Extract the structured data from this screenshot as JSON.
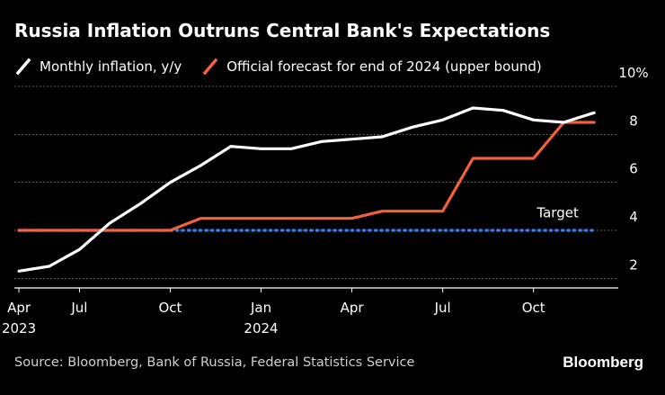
{
  "title": "Russia Inflation Outruns Central Bank's Expectations",
  "legend": [
    {
      "label": "Monthly inflation, y/y",
      "color": "#ffffff"
    },
    {
      "label": "Official forecast for end of 2024 (upper bound)",
      "color": "#f2613b"
    }
  ],
  "source": "Source: Bloomberg, Bank of Russia, Federal Statistics Service",
  "brand": "Bloomberg",
  "chart_data": {
    "type": "line",
    "title": "Russia Inflation Outruns Central Bank's Expectations",
    "x": [
      "2023-04",
      "2023-05",
      "2023-06",
      "2023-07",
      "2023-08",
      "2023-09",
      "2023-10",
      "2023-11",
      "2023-12",
      "2024-01",
      "2024-02",
      "2024-03",
      "2024-04",
      "2024-05",
      "2024-06",
      "2024-07",
      "2024-08",
      "2024-09",
      "2024-10",
      "2024-11",
      "2024-12"
    ],
    "x_ticks": [
      {
        "index": 0,
        "label": "Apr",
        "sublabel": "2023"
      },
      {
        "index": 2,
        "label": "Jul",
        "sublabel": ""
      },
      {
        "index": 5,
        "label": "Oct",
        "sublabel": ""
      },
      {
        "index": 8,
        "label": "Jan",
        "sublabel": "2024"
      },
      {
        "index": 11,
        "label": "Apr",
        "sublabel": ""
      },
      {
        "index": 14,
        "label": "Jul",
        "sublabel": ""
      },
      {
        "index": 17,
        "label": "Oct",
        "sublabel": ""
      }
    ],
    "y_ticks": [
      {
        "value": 2,
        "label": "2"
      },
      {
        "value": 4,
        "label": "4"
      },
      {
        "value": 6,
        "label": "6"
      },
      {
        "value": 8,
        "label": "8"
      },
      {
        "value": 10,
        "label": "10%"
      }
    ],
    "ylim": [
      1.6,
      10.3
    ],
    "xlim": [
      -0.15,
      19.8
    ],
    "series": [
      {
        "name": "Monthly inflation, y/y",
        "color": "#ffffff",
        "points": [
          [
            0,
            2.3
          ],
          [
            1,
            2.5
          ],
          [
            2,
            3.2
          ],
          [
            3,
            4.3
          ],
          [
            4,
            5.1
          ],
          [
            5,
            6.0
          ],
          [
            6,
            6.7
          ],
          [
            7,
            7.5
          ],
          [
            8,
            7.4
          ],
          [
            9,
            7.4
          ],
          [
            10,
            7.7
          ],
          [
            11,
            7.8
          ],
          [
            12,
            7.9
          ],
          [
            13,
            8.3
          ],
          [
            14,
            8.6
          ],
          [
            15,
            9.1
          ],
          [
            16,
            9.0
          ],
          [
            17,
            8.6
          ],
          [
            18,
            8.5
          ],
          [
            19,
            8.9
          ]
        ]
      },
      {
        "name": "Official forecast for end of 2024 (upper bound)",
        "color": "#f2613b",
        "points": [
          [
            0,
            4.0
          ],
          [
            5,
            4.0
          ],
          [
            6,
            4.5
          ],
          [
            11,
            4.5
          ],
          [
            12,
            4.8
          ],
          [
            14,
            4.8
          ],
          [
            15,
            7.0
          ],
          [
            17,
            7.0
          ],
          [
            18,
            8.5
          ],
          [
            19,
            8.5
          ]
        ]
      },
      {
        "name": "Target",
        "color": "#2f7df0",
        "style": "dotted",
        "points": [
          [
            0,
            4.0
          ],
          [
            19,
            4.0
          ]
        ]
      }
    ],
    "annotations": [
      {
        "text": "Target",
        "x": 17.8,
        "y": 4.55
      }
    ],
    "grid": true
  }
}
